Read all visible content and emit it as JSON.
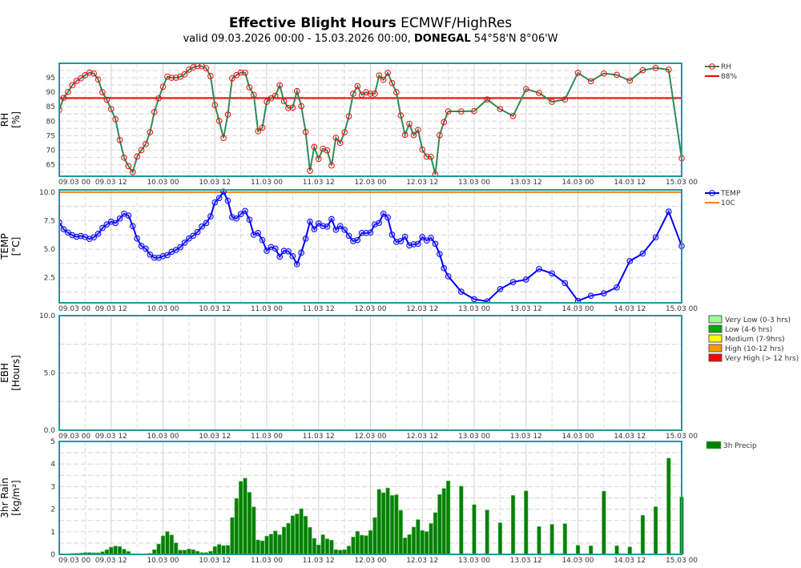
{
  "header": {
    "title_bold": "Effective Blight Hours",
    "title_rest": " ECMWF/HighRes",
    "subtitle_pre": "valid 09.03.2026 00:00 - 15.03.2026 00:00, ",
    "subtitle_bold": "DONEGAL",
    "subtitle_post": " 54°58'N 8°06'W"
  },
  "chart_data": {
    "type": "line",
    "x_tick_labels": [
      "09.03 00",
      "09.03 12",
      "10.03 00",
      "10.03 12",
      "11.03 00",
      "11.03 12",
      "12.03 00",
      "12.03 12",
      "13.03 00",
      "13.03 12",
      "14.03 00",
      "14.03 12",
      "15.03 00"
    ],
    "x": [
      "09.03 00",
      "09.03 01",
      "09.03 02",
      "09.03 03",
      "09.03 04",
      "09.03 05",
      "09.03 06",
      "09.03 07",
      "09.03 08",
      "09.03 09",
      "09.03 10",
      "09.03 11",
      "09.03 12",
      "09.03 13",
      "09.03 14",
      "09.03 15",
      "09.03 16",
      "09.03 17",
      "09.03 18",
      "09.03 19",
      "09.03 20",
      "09.03 21",
      "09.03 22",
      "09.03 23",
      "10.03 00",
      "10.03 01",
      "10.03 02",
      "10.03 03",
      "10.03 04",
      "10.03 05",
      "10.03 06",
      "10.03 07",
      "10.03 08",
      "10.03 09",
      "10.03 10",
      "10.03 11",
      "10.03 12",
      "10.03 13",
      "10.03 14",
      "10.03 15",
      "10.03 16",
      "10.03 17",
      "10.03 18",
      "10.03 19",
      "10.03 20",
      "10.03 21",
      "10.03 22",
      "10.03 23",
      "11.03 00",
      "11.03 01",
      "11.03 02",
      "11.03 03",
      "11.03 04",
      "11.03 05",
      "11.03 06",
      "11.03 07",
      "11.03 08",
      "11.03 09",
      "11.03 10",
      "11.03 11",
      "11.03 12",
      "11.03 13",
      "11.03 14",
      "11.03 15",
      "11.03 16",
      "11.03 17",
      "11.03 18",
      "11.03 19",
      "11.03 20",
      "11.03 21",
      "11.03 22",
      "11.03 23",
      "12.03 00",
      "12.03 01",
      "12.03 02",
      "12.03 03",
      "12.03 04",
      "12.03 05",
      "12.03 06",
      "12.03 07",
      "12.03 08",
      "12.03 09",
      "12.03 10",
      "12.03 11",
      "12.03 12",
      "12.03 13",
      "12.03 14",
      "12.03 15",
      "12.03 16",
      "12.03 17",
      "12.03 18",
      "12.03 21",
      "13.03 00",
      "13.03 03",
      "13.03 06",
      "13.03 09",
      "13.03 12",
      "13.03 15",
      "13.03 18",
      "13.03 21",
      "14.03 00",
      "14.03 03",
      "14.03 06",
      "14.03 09",
      "14.03 12",
      "14.03 15",
      "14.03 18",
      "14.03 21",
      "15.03 00"
    ],
    "panels": [
      {
        "ylabel": "RH",
        "yunit": "[%]",
        "ylim": [
          61,
          100
        ],
        "yticks": [
          "65",
          "70",
          "75",
          "80",
          "85",
          "90",
          "95"
        ],
        "series": [
          {
            "name": "RH",
            "style": "line-marker",
            "color": "#2e8b57",
            "marker_color": "#ff0000",
            "values": [
              83.9,
              88.1,
              90.1,
              92.4,
              93.9,
              94.8,
              95.9,
              96.8,
              96.5,
              94.4,
              90.0,
              87.4,
              84.2,
              80.7,
              73.5,
              67.4,
              64.5,
              62.4,
              67.8,
              70.0,
              72.1,
              76.2,
              83.2,
              87.9,
              91.9,
              95.4,
              95.0,
              95.0,
              95.4,
              96.2,
              97.8,
              98.6,
              99.0,
              99.0,
              98.3,
              95.6,
              85.6,
              80.1,
              74.2,
              82.3,
              94.8,
              95.9,
              96.8,
              96.7,
              91.7,
              89.1,
              76.5,
              77.8,
              86.7,
              87.9,
              88.8,
              92.4,
              86.9,
              84.6,
              84.7,
              90.4,
              85.2,
              76.3,
              62.9,
              71.1,
              67.0,
              70.5,
              69.9,
              64.7,
              74.3,
              72.5,
              76.2,
              81.7,
              89.5,
              92.1,
              89.1,
              90.0,
              89.5,
              89.5,
              95.8,
              94.3,
              96.7,
              93.2,
              90.0,
              82.0,
              75.3,
              79.1,
              75.2,
              77.0,
              70.2,
              67.8,
              67.7,
              61.6,
              75.2,
              79.7,
              83.4,
              83.4,
              83.5,
              87.5,
              84.2,
              81.8,
              91.1,
              89.8,
              86.7,
              87.5,
              96.7,
              93.8,
              96.5,
              96.0,
              94.0,
              97.6,
              98.4,
              97.8,
              67.2
            ]
          }
        ],
        "threshold": {
          "name": "88%",
          "value": 88,
          "color": "#ff0000"
        }
      },
      {
        "ylabel": "TEMP",
        "yunit": "[°C]",
        "ylim": [
          0.3,
          10.2
        ],
        "yticks": [
          "2.5",
          "5.0",
          "7.5",
          "10.0"
        ],
        "series": [
          {
            "name": "TEMP",
            "style": "line-marker",
            "color": "#0000ff",
            "marker_color": "#0000ff",
            "values": [
              7.34,
              6.75,
              6.46,
              6.23,
              6.09,
              6.16,
              6.06,
              5.9,
              6.04,
              6.35,
              6.86,
              7.17,
              7.41,
              7.29,
              7.69,
              8.11,
              7.95,
              7.03,
              5.94,
              5.28,
              5.05,
              4.53,
              4.25,
              4.25,
              4.39,
              4.48,
              4.77,
              4.93,
              5.17,
              5.57,
              5.94,
              6.18,
              6.51,
              6.98,
              7.29,
              7.88,
              9.1,
              9.48,
              10.05,
              9.25,
              7.81,
              7.69,
              8.07,
              8.35,
              7.59,
              6.27,
              6.42,
              5.8,
              4.86,
              5.19,
              5.05,
              4.34,
              4.86,
              4.81,
              4.39,
              3.68,
              4.69,
              5.92,
              7.41,
              6.75,
              7.26,
              7.03,
              6.98,
              7.64,
              6.7,
              7.03,
              6.7,
              6.18,
              5.71,
              5.8,
              6.42,
              6.42,
              6.46,
              7.17,
              7.31,
              8.11,
              7.78,
              6.27,
              5.64,
              5.71,
              6.09,
              5.33,
              5.43,
              5.47,
              6.06,
              5.76,
              5.99,
              5.47,
              4.58,
              3.33,
              2.62,
              1.28,
              0.62,
              0.43,
              1.51,
              2.12,
              2.34,
              3.26,
              2.88,
              2.03,
              0.47,
              0.92,
              1.13,
              1.65,
              3.96,
              4.62,
              6.04,
              8.3,
              5.28
            ]
          }
        ],
        "threshold": {
          "name": "10C",
          "value": 10,
          "color": "#ff7f0e"
        }
      },
      {
        "ylabel": "EBH",
        "yunit": "[Hours]",
        "ylim": [
          0,
          10
        ],
        "yticks": [
          "0.0",
          "5.0",
          "10.0"
        ],
        "series": [
          {
            "style": "line",
            "color": "#006400",
            "values": [
              0,
              0,
              0,
              0,
              0,
              0,
              0,
              0,
              0,
              0,
              0,
              0,
              0,
              0,
              0,
              0,
              0,
              0,
              0,
              0,
              0,
              0,
              0,
              0,
              0,
              0,
              0,
              0,
              0,
              0,
              0,
              0,
              0,
              0,
              0,
              0,
              0,
              0,
              0,
              0,
              0,
              0,
              0,
              0,
              0,
              0,
              0,
              0,
              0,
              0,
              0,
              0,
              0,
              0,
              0,
              0,
              0,
              0,
              0,
              0,
              0,
              0,
              0,
              0,
              0,
              0,
              0,
              0,
              0,
              0,
              0,
              0,
              0,
              0,
              0,
              0,
              0,
              0,
              0,
              0,
              0,
              0,
              0,
              0,
              0,
              0,
              0,
              0,
              0,
              0,
              0,
              0,
              0,
              0,
              0,
              0,
              0,
              0,
              0,
              0,
              0,
              0,
              0,
              0,
              0,
              0,
              0,
              0,
              0
            ]
          }
        ],
        "legend": [
          {
            "label": "Very Low (0-3 hrs)",
            "color": "#99ff99"
          },
          {
            "label": "Low (4-6 hrs)",
            "color": "#00aa00"
          },
          {
            "label": "Medium (7-9hrs)",
            "color": "#ffff00"
          },
          {
            "label": "High (10-12 hrs)",
            "color": "#ff9900"
          },
          {
            "label": "Very High (> 12 hrs)",
            "color": "#ff0000"
          }
        ]
      },
      {
        "ylabel": "3hr Rain",
        "yunit": "[kg/m²]",
        "ylim": [
          0,
          5
        ],
        "yticks": [
          "0",
          "1",
          "2",
          "3",
          "4",
          "5"
        ],
        "series": [
          {
            "name": "3h Precip",
            "style": "bar",
            "color": "#008000",
            "values": [
              0,
              0,
              0,
              0.04,
              0.05,
              0.06,
              0.08,
              0.08,
              0.07,
              0.07,
              0.12,
              0.21,
              0.32,
              0.37,
              0.35,
              0.23,
              0.13,
              0.02,
              0.02,
              0.02,
              0.02,
              0.05,
              0.21,
              0.46,
              0.82,
              1.01,
              0.86,
              0.51,
              0.19,
              0.19,
              0.24,
              0.21,
              0.14,
              0.08,
              0.08,
              0.14,
              0.35,
              0.44,
              0.39,
              0.4,
              1.63,
              2.48,
              3.23,
              3.37,
              2.75,
              2.1,
              0.64,
              0.6,
              0.81,
              0.9,
              1.04,
              0.87,
              1.21,
              1.38,
              1.71,
              1.79,
              2.02,
              1.69,
              1.2,
              0.71,
              0.42,
              0.87,
              0.69,
              0.63,
              0.21,
              0.19,
              0.21,
              0.37,
              0.77,
              1.02,
              0.85,
              0.83,
              1.06,
              1.63,
              2.88,
              2.73,
              2.94,
              2.61,
              2.64,
              1.95,
              0.73,
              0.88,
              1.21,
              1.54,
              1.06,
              1.01,
              1.37,
              1.85,
              2.65,
              2.92,
              3.25,
              3.02,
              2.2,
              1.96,
              1.4,
              2.61,
              2.81,
              1.23,
              1.33,
              1.36,
              0.4,
              0.38,
              2.8,
              0.38,
              0.33,
              1.73,
              2.11,
              4.26,
              2.54
            ]
          }
        ]
      }
    ],
    "grid": true,
    "legend_placement": "right",
    "frame_color": "#20999a"
  }
}
